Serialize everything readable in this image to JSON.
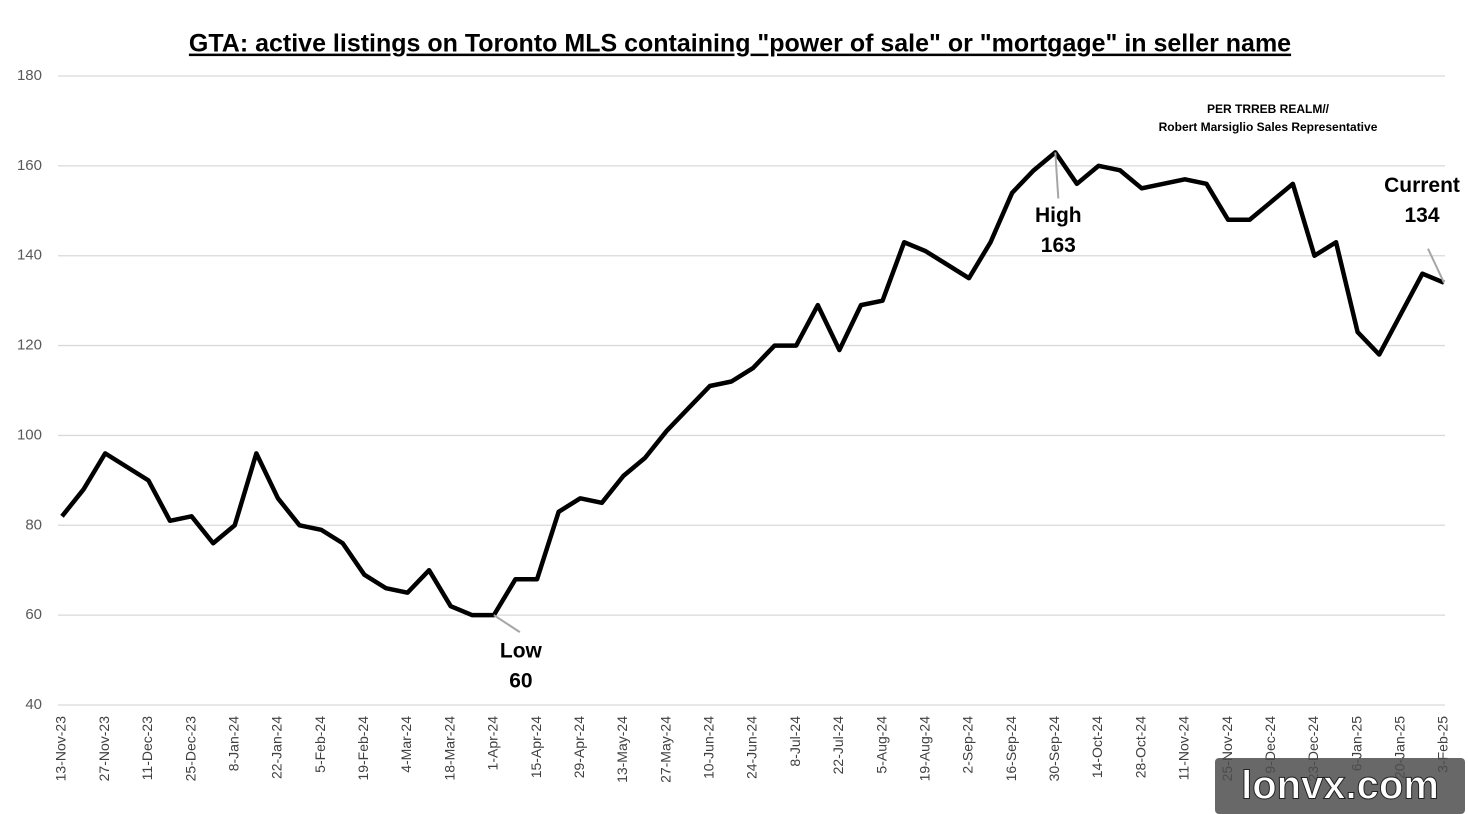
{
  "chart_data": {
    "type": "line",
    "title": "GTA: active listings on Toronto MLS containing \"power of sale\" or \"mortgage\" in seller name",
    "note": [
      "PER TRREB  REALM//",
      "Robert Marsiglio Sales Representative"
    ],
    "watermark": "lonvx.com",
    "categories": [
      "13-Nov-23",
      null,
      "27-Nov-23",
      null,
      "11-Dec-23",
      null,
      "25-Dec-23",
      null,
      "8-Jan-24",
      null,
      "22-Jan-24",
      null,
      "5-Feb-24",
      null,
      "19-Feb-24",
      null,
      "4-Mar-24",
      null,
      "18-Mar-24",
      null,
      "1-Apr-24",
      null,
      "15-Apr-24",
      null,
      "29-Apr-24",
      null,
      "13-May-24",
      null,
      "27-May-24",
      null,
      "10-Jun-24",
      null,
      "24-Jun-24",
      null,
      "8-Jul-24",
      null,
      "22-Jul-24",
      null,
      "5-Aug-24",
      null,
      "19-Aug-24",
      null,
      "2-Sep-24",
      null,
      "16-Sep-24",
      null,
      "30-Sep-24",
      null,
      "14-Oct-24",
      null,
      "28-Oct-24",
      null,
      "11-Nov-24",
      null,
      "25-Nov-24",
      null,
      "9-Dec-24",
      null,
      "23-Dec-24",
      null,
      "6-Jan-25",
      null,
      "20-Jan-25",
      null,
      "3-Feb-25"
    ],
    "series": [
      {
        "name": "Active listings",
        "color": "#000000",
        "values": [
          82,
          88,
          96,
          93,
          90,
          81,
          82,
          76,
          80,
          96,
          86,
          80,
          79,
          76,
          69,
          66,
          65,
          70,
          62,
          60,
          60,
          68,
          68,
          83,
          86,
          85,
          91,
          95,
          101,
          106,
          111,
          112,
          115,
          120,
          120,
          129,
          119,
          129,
          130,
          143,
          141,
          138,
          135,
          143,
          154,
          159,
          163,
          156,
          160,
          159,
          155,
          156,
          157,
          156,
          148,
          148,
          152,
          156,
          140,
          143,
          123,
          118,
          127,
          136,
          134
        ]
      }
    ],
    "annotations": [
      {
        "text": "Low",
        "value": 60,
        "category": "1-Apr-24"
      },
      {
        "text": "High",
        "value": 163,
        "category": "30-Sep-24"
      },
      {
        "text": "Current",
        "value": 134,
        "category": "3-Feb-25"
      }
    ],
    "ylim": [
      40,
      180
    ],
    "yticks": [
      40,
      60,
      80,
      100,
      120,
      140,
      160,
      180
    ],
    "grid": true
  }
}
